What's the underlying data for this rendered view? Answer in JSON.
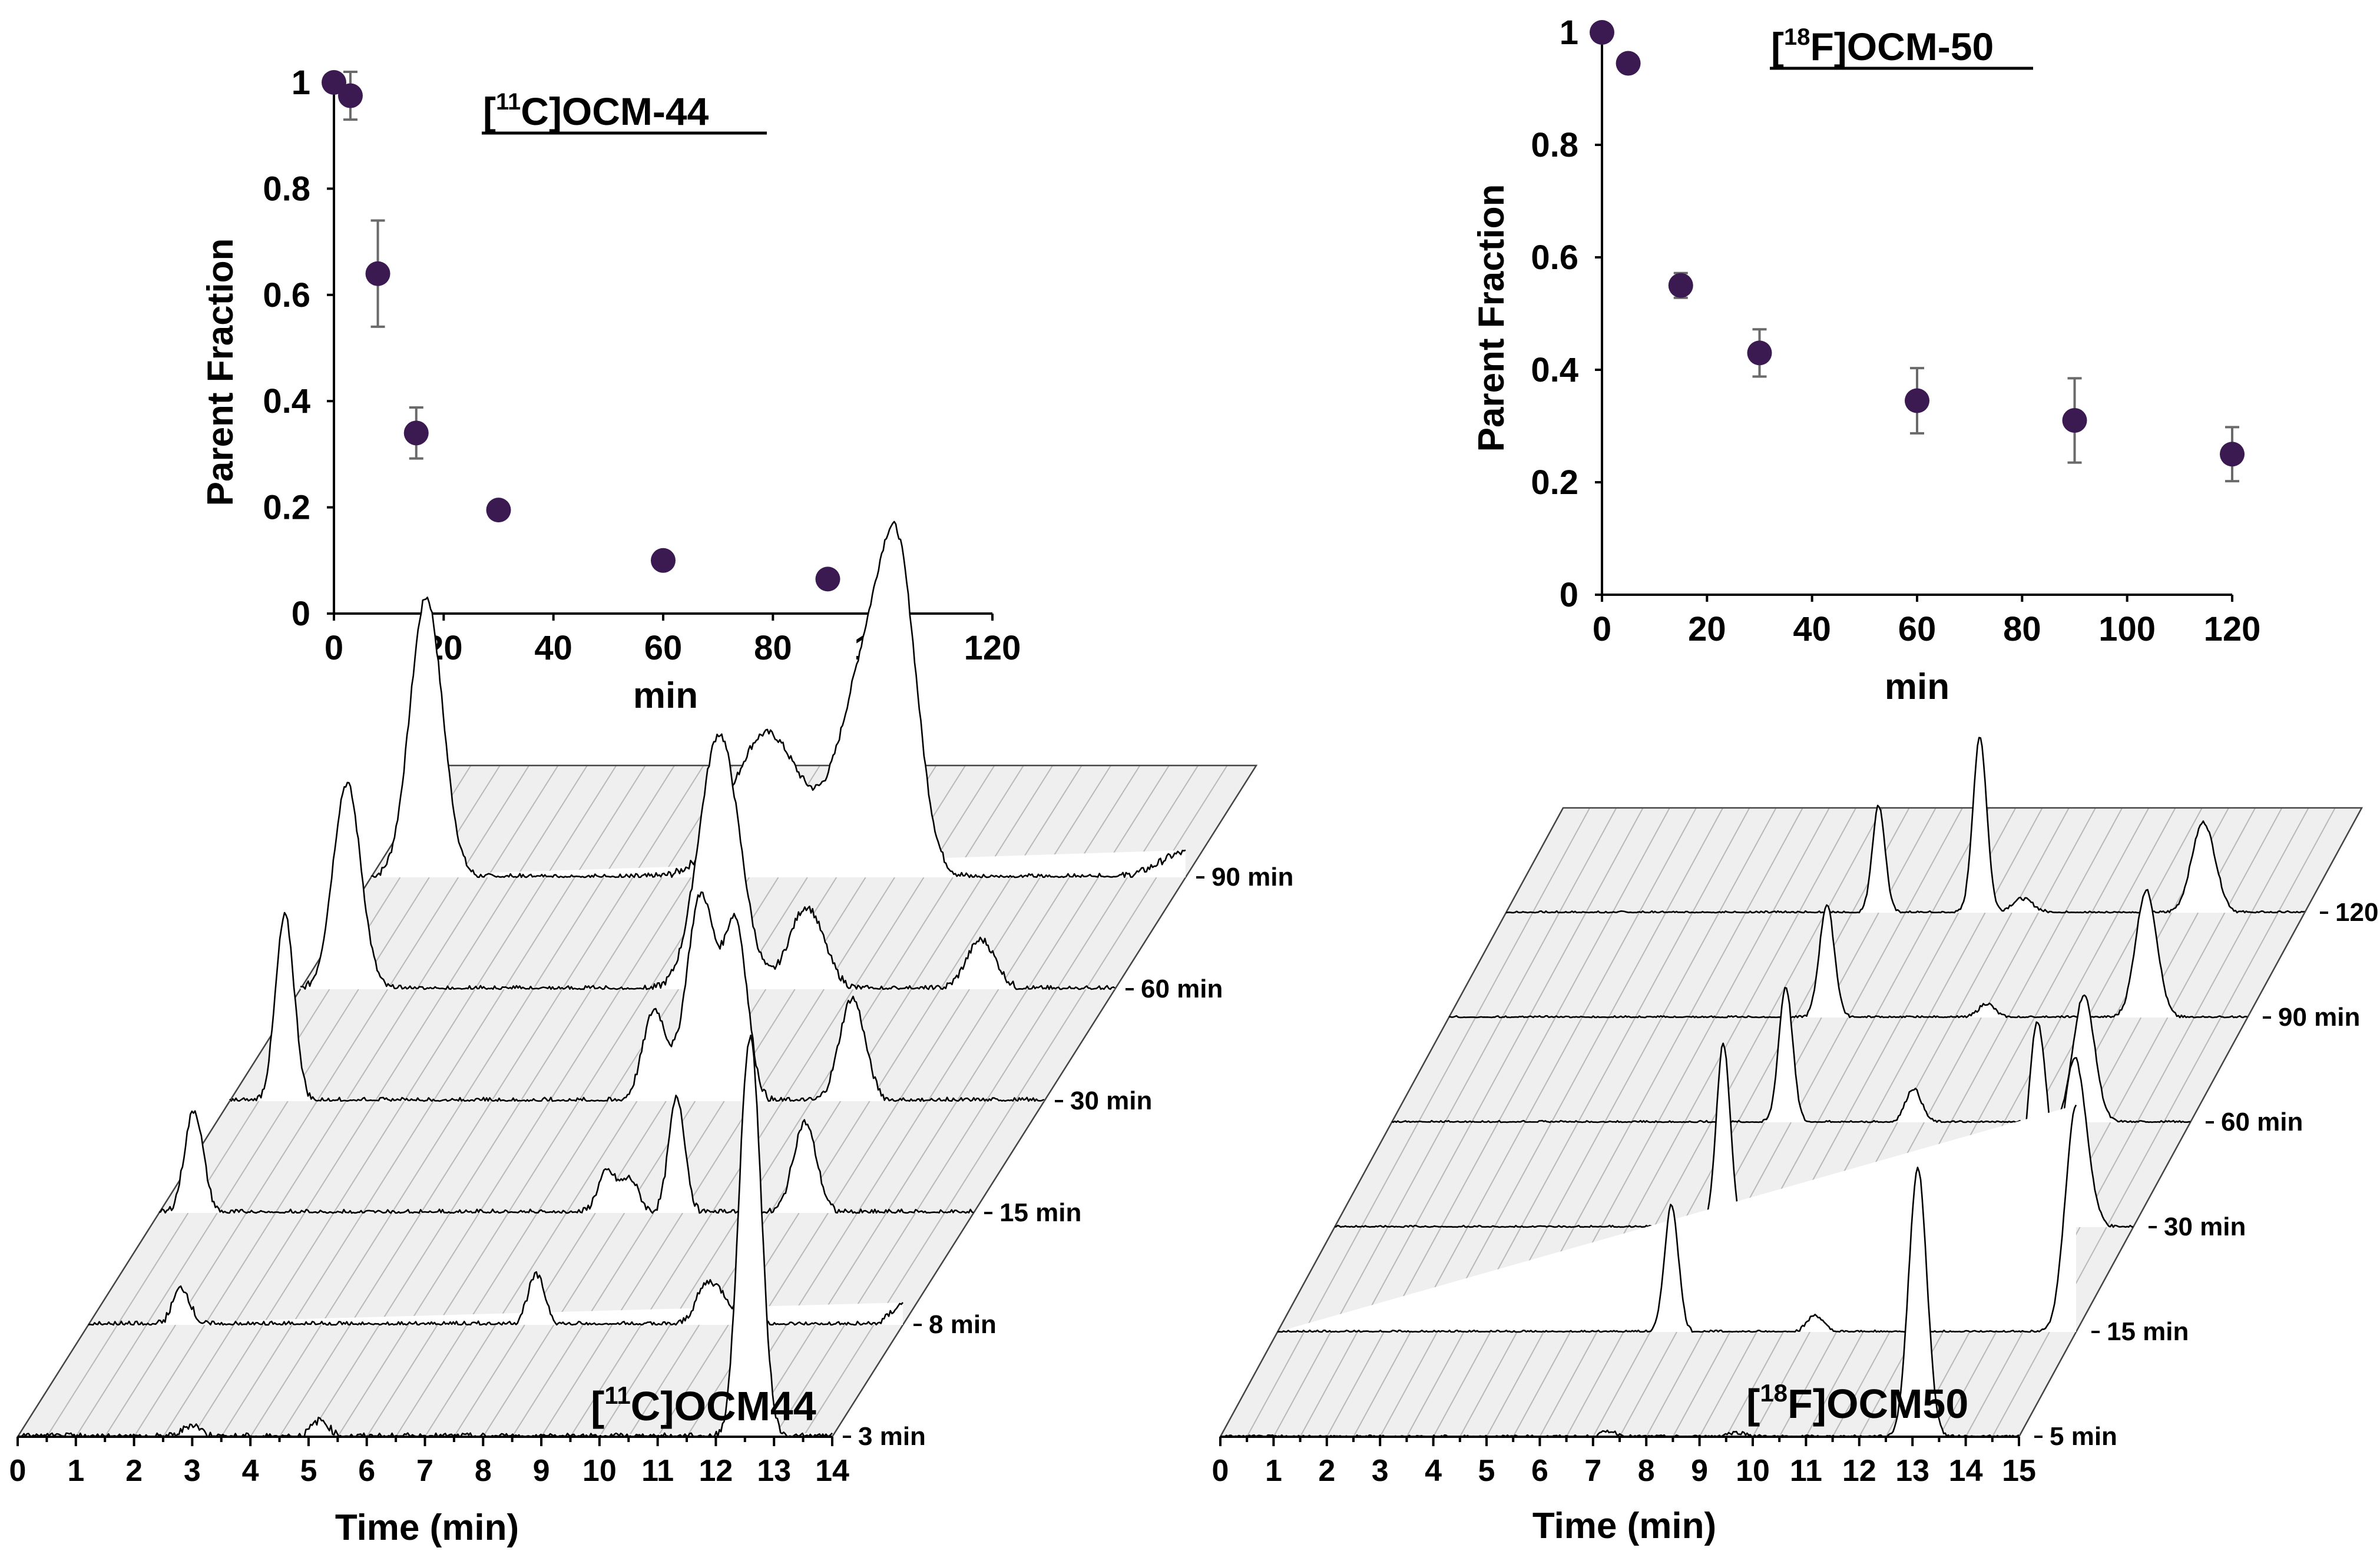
{
  "chart_data": [
    {
      "type": "scatter",
      "title": "[11C]OCM-44",
      "title_parts": {
        "bracket_open": "[",
        "isotope": "11",
        "rest": "C]OCM-44"
      },
      "xlabel": "min",
      "ylabel": "Parent Fraction",
      "xlim": [
        0,
        120
      ],
      "ylim": [
        0,
        1
      ],
      "xticks": [
        "0",
        "20",
        "40",
        "60",
        "80",
        "100",
        "120"
      ],
      "yticks": [
        "0",
        "0.2",
        "0.4",
        "0.6",
        "0.8",
        "1"
      ],
      "x": [
        0,
        3,
        8,
        15,
        30,
        60,
        90
      ],
      "y": [
        1.0,
        0.975,
        0.64,
        0.34,
        0.195,
        0.1,
        0.065
      ],
      "error": [
        0.0,
        0.045,
        0.1,
        0.048,
        0.0,
        0.0,
        0.0
      ]
    },
    {
      "type": "scatter",
      "title": "[18F]OCM-50",
      "title_parts": {
        "bracket_open": "[",
        "isotope": "18",
        "rest": "F]OCM-50"
      },
      "xlabel": "min",
      "ylabel": "Parent Fraction",
      "xlim": [
        0,
        120
      ],
      "ylim": [
        0,
        1
      ],
      "xticks": [
        "0",
        "20",
        "40",
        "60",
        "80",
        "100",
        "120"
      ],
      "yticks": [
        "0",
        "0.2",
        "0.4",
        "0.6",
        "0.8",
        "1"
      ],
      "x": [
        0,
        5,
        15,
        30,
        60,
        90,
        120
      ],
      "y": [
        1.0,
        0.945,
        0.55,
        0.43,
        0.345,
        0.31,
        0.25
      ],
      "error": [
        0.0,
        0.0,
        0.022,
        0.042,
        0.058,
        0.075,
        0.048
      ]
    },
    {
      "type": "line",
      "subtype": "waterfall-radio-hplc",
      "label": "[11C]OCM44",
      "label_parts": {
        "bracket_open": "[",
        "isotope": "11",
        "rest": "C]OCM44"
      },
      "xlabel": "Time (min)",
      "xlim": [
        0,
        14
      ],
      "xticks": [
        "0",
        "1",
        "2",
        "3",
        "4",
        "5",
        "6",
        "7",
        "8",
        "9",
        "10",
        "11",
        "12",
        "13",
        "14"
      ],
      "series": [
        {
          "name": "3 min",
          "peaks": [
            [
              12.6,
              0.18,
              0.95
            ],
            [
              12.4,
              0.12,
              0.08
            ],
            [
              5.2,
              0.15,
              0.04
            ],
            [
              3.0,
              0.15,
              0.03
            ]
          ]
        },
        {
          "name": "8 min",
          "peaks": [
            [
              1.6,
              0.15,
              0.09
            ],
            [
              7.7,
              0.15,
              0.12
            ],
            [
              10.6,
              0.18,
              0.08
            ],
            [
              10.9,
              0.2,
              0.06
            ],
            [
              14.0,
              0.2,
              0.05
            ]
          ]
        },
        {
          "name": "15 min",
          "peaks": [
            [
              0.6,
              0.16,
              0.25
            ],
            [
              7.7,
              0.16,
              0.1
            ],
            [
              8.1,
              0.15,
              0.08
            ],
            [
              8.9,
              0.14,
              0.28
            ],
            [
              11.1,
              0.2,
              0.22
            ]
          ]
        },
        {
          "name": "30 min",
          "peaks": [
            [
              0.95,
              0.16,
              0.45
            ],
            [
              7.3,
              0.2,
              0.22
            ],
            [
              8.1,
              0.25,
              0.5
            ],
            [
              8.7,
              0.2,
              0.42
            ],
            [
              10.7,
              0.22,
              0.25
            ]
          ]
        },
        {
          "name": "60 min",
          "peaks": [
            [
              0.8,
              0.24,
              0.5
            ],
            [
              7.2,
              0.35,
              0.62
            ],
            [
              8.7,
              0.3,
              0.2
            ],
            [
              11.7,
              0.25,
              0.12
            ]
          ]
        },
        {
          "name": "90 min",
          "peaks": [
            [
              0.95,
              0.28,
              0.68
            ],
            [
              6.8,
              0.6,
              0.35
            ],
            [
              8.6,
              0.5,
              0.55
            ],
            [
              9.1,
              0.3,
              0.48
            ],
            [
              14.0,
              0.45,
              0.06
            ]
          ]
        }
      ]
    },
    {
      "type": "line",
      "subtype": "waterfall-radio-hplc",
      "label": "[18F]OCM50",
      "label_parts": {
        "bracket_open": "[",
        "isotope": "18",
        "rest": "F]OCM50"
      },
      "xlabel": "Time (min)",
      "xlim": [
        0,
        15
      ],
      "xticks": [
        "0",
        "1",
        "2",
        "3",
        "4",
        "5",
        "6",
        "7",
        "8",
        "9",
        "10",
        "11",
        "12",
        "13",
        "14",
        "15"
      ],
      "series": [
        {
          "name": "5 min",
          "peaks": [
            [
              13.1,
              0.17,
              0.95
            ],
            [
              7.3,
              0.15,
              0.02
            ],
            [
              9.7,
              0.2,
              0.015
            ]
          ]
        },
        {
          "name": "15 min",
          "peaks": [
            [
              7.4,
              0.13,
              0.45
            ],
            [
              10.1,
              0.15,
              0.06
            ],
            [
              15.0,
              0.2,
              0.8
            ]
          ]
        },
        {
          "name": "30 min",
          "peaks": [
            [
              7.3,
              0.13,
              0.65
            ],
            [
              10.5,
              0.15,
              0.06
            ],
            [
              13.2,
              0.18,
              0.72
            ],
            [
              13.9,
              0.22,
              0.6
            ]
          ]
        },
        {
          "name": "60 min",
          "peaks": [
            [
              7.4,
              0.13,
              0.48
            ],
            [
              9.8,
              0.15,
              0.12
            ],
            [
              13.0,
              0.2,
              0.45
            ]
          ]
        },
        {
          "name": "90 min",
          "peaks": [
            [
              7.1,
              0.14,
              0.4
            ],
            [
              10.1,
              0.15,
              0.05
            ],
            [
              13.1,
              0.2,
              0.45
            ]
          ]
        },
        {
          "name": "120 min",
          "peaks": [
            [
              7.0,
              0.12,
              0.38
            ],
            [
              8.9,
              0.13,
              0.62
            ],
            [
              9.7,
              0.2,
              0.05
            ],
            [
              13.1,
              0.22,
              0.32
            ]
          ]
        }
      ]
    }
  ]
}
